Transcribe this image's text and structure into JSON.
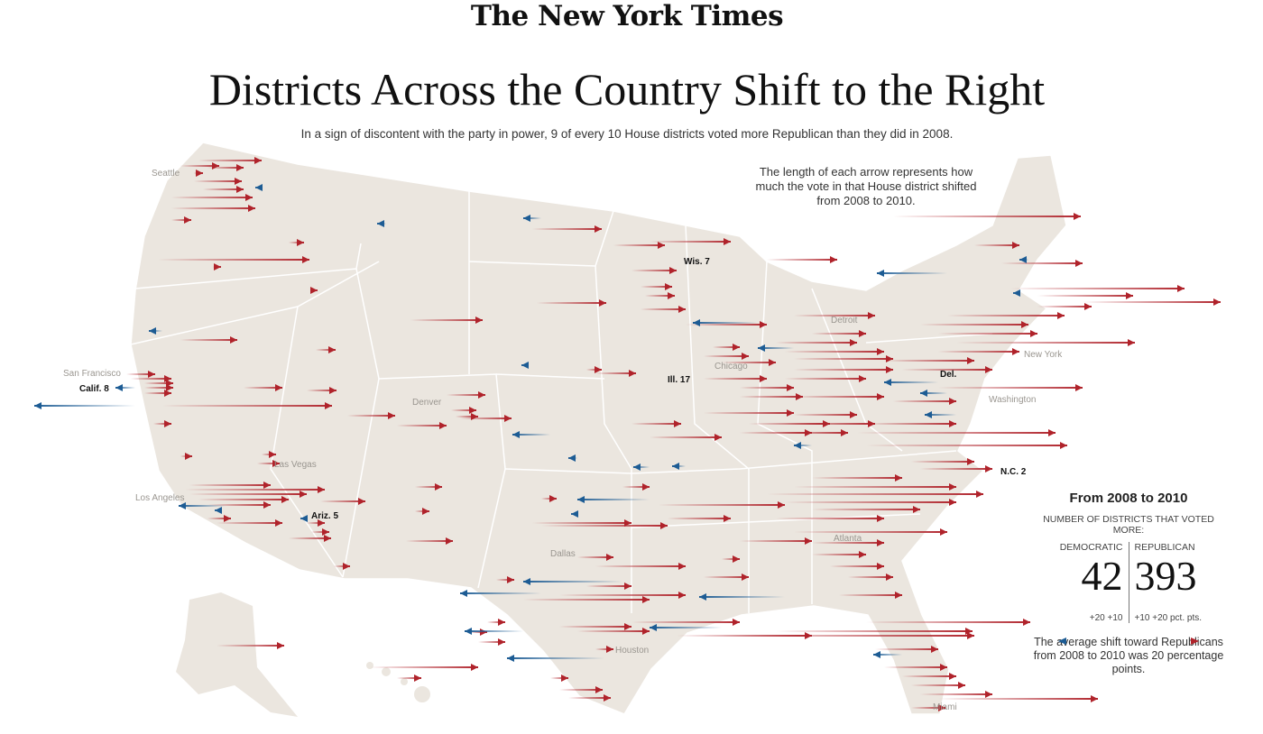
{
  "masthead": "The New York Times",
  "title": "Districts Across the Country Shift to the Right",
  "subtitle": "In a sign of discontent with the party in power, 9 of every 10 House districts voted more Republican than they did in 2008.",
  "note": "The length of each arrow represents how much the vote in that House district shifted from 2008 to 2010.",
  "cities": [
    "Seattle",
    "San Francisco",
    "Los Angeles",
    "Las Vegas",
    "Denver",
    "Dallas",
    "Houston",
    "Chicago",
    "Detroit",
    "New York",
    "Washington",
    "Atlanta",
    "Miami"
  ],
  "districts": [
    "Calif. 8",
    "Ariz. 5",
    "Wis. 7",
    "Ill. 17",
    "Del.",
    "N.C. 2"
  ],
  "legend": {
    "title": "From 2008 to 2010",
    "subtitle": "NUMBER OF DISTRICTS THAT VOTED MORE:",
    "democratic_label": "DEMOCRATIC",
    "republican_label": "REPUBLICAN",
    "democratic_count": "42",
    "republican_count": "393",
    "dem_ticks": "+20   +10",
    "rep_ticks": "+10   +20 pct. pts.",
    "average": "The average shift toward Republicans from 2008 to 2010 was 20 percentage points."
  },
  "colors": {
    "republican": "#b0232b",
    "democratic": "#1d5c94",
    "land": "#ebe6df",
    "borders": "#ffffff"
  }
}
